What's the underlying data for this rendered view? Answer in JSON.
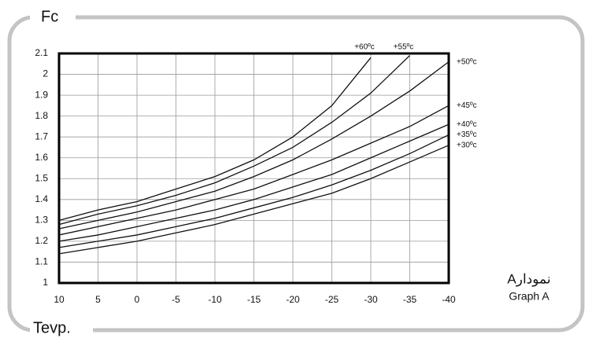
{
  "chart_data": {
    "type": "line",
    "y_label": "Fc",
    "x_label": "Tevp.",
    "annotations": [
      "نمودارA",
      "Graph A"
    ],
    "x": [
      10,
      5,
      0,
      -5,
      -10,
      -15,
      -20,
      -25,
      -30,
      -35,
      -40
    ],
    "xlim": [
      10,
      -40
    ],
    "xticks": [
      10,
      5,
      0,
      -5,
      -10,
      -15,
      -20,
      -25,
      -30,
      -35,
      -40
    ],
    "ylim": [
      1,
      2.1
    ],
    "yticks": [
      1,
      1.1,
      1.2,
      1.3,
      1.4,
      1.5,
      1.6,
      1.7,
      1.8,
      1.9,
      2,
      2.1
    ],
    "grid": true,
    "series": [
      {
        "name": "+30ºc",
        "color": "#111111",
        "values": [
          1.14,
          1.17,
          1.2,
          1.24,
          1.28,
          1.33,
          1.38,
          1.43,
          1.5,
          1.58,
          1.66
        ]
      },
      {
        "name": "+35ºc",
        "color": "#111111",
        "values": [
          1.17,
          1.2,
          1.23,
          1.27,
          1.31,
          1.36,
          1.41,
          1.47,
          1.54,
          1.62,
          1.71
        ]
      },
      {
        "name": "+40ºc",
        "color": "#111111",
        "values": [
          1.2,
          1.23,
          1.27,
          1.31,
          1.35,
          1.4,
          1.46,
          1.52,
          1.6,
          1.68,
          1.76
        ]
      },
      {
        "name": "+45ºc",
        "color": "#111111",
        "values": [
          1.23,
          1.27,
          1.31,
          1.35,
          1.4,
          1.45,
          1.52,
          1.59,
          1.67,
          1.75,
          1.85
        ]
      },
      {
        "name": "+50ºc",
        "color": "#111111",
        "values": [
          1.26,
          1.3,
          1.34,
          1.39,
          1.44,
          1.51,
          1.59,
          1.69,
          1.8,
          1.92,
          2.06
        ]
      },
      {
        "name": "+55ºc",
        "color": "#111111",
        "values": [
          1.28,
          1.33,
          1.37,
          1.42,
          1.48,
          1.56,
          1.65,
          1.77,
          1.91,
          2.09,
          null
        ]
      },
      {
        "name": "+60ºc",
        "color": "#111111",
        "values": [
          1.3,
          1.35,
          1.39,
          1.45,
          1.51,
          1.59,
          1.7,
          1.85,
          2.08,
          null,
          null
        ]
      }
    ]
  }
}
